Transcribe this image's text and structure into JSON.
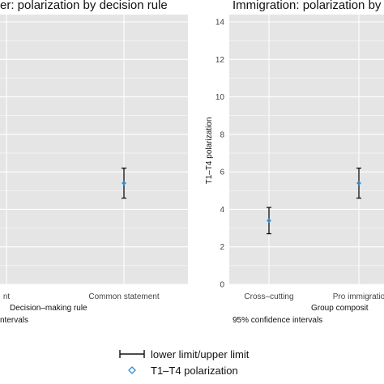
{
  "chart_data": [
    {
      "type": "errorbar",
      "title": "er: polarization by decision rule",
      "xlabel": "Decision–making rule",
      "caption": "ntervals",
      "categories": [
        "nt",
        "Common statement"
      ],
      "ylim": [
        0,
        14
      ],
      "grid": true,
      "series": [
        {
          "points": [
            {
              "category": "Common statement",
              "value": 5.4,
              "lower": 4.6,
              "upper": 6.2
            }
          ]
        }
      ]
    },
    {
      "type": "errorbar",
      "title": "Immigration: polarization by",
      "xlabel": "Group composit",
      "ylabel": "T1–T4 polarization",
      "caption": "95% confidence intervals",
      "categories": [
        "Cross–cutting",
        "Pro immigratio"
      ],
      "ylim": [
        0,
        14
      ],
      "yticks": [
        0,
        2,
        4,
        6,
        8,
        10,
        12,
        14
      ],
      "grid": true,
      "series": [
        {
          "points": [
            {
              "category": "Cross–cutting",
              "value": 3.4,
              "lower": 2.7,
              "upper": 4.1
            },
            {
              "category": "Pro immigratio",
              "value": 5.4,
              "lower": 4.6,
              "upper": 6.2
            }
          ]
        }
      ]
    }
  ],
  "legend": {
    "position": "bottom",
    "errorbar_label": "lower limit/upper limit",
    "point_label": "T1–T4 polarization"
  },
  "colors": {
    "point": "#2f8fd8",
    "panel": "#e5e5e5",
    "grid": "#ffffff",
    "errorbar": "#111111"
  }
}
